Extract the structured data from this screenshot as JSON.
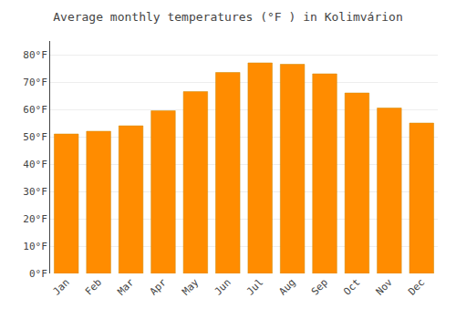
{
  "chart_data": {
    "type": "bar",
    "title": "Average monthly temperatures (°F ) in Kolimvárion",
    "categories": [
      "Jan",
      "Feb",
      "Mar",
      "Apr",
      "May",
      "Jun",
      "Jul",
      "Aug",
      "Sep",
      "Oct",
      "Nov",
      "Dec"
    ],
    "values": [
      51,
      52,
      54,
      59.5,
      66.5,
      73.5,
      77,
      76.5,
      73,
      66,
      60.5,
      55
    ],
    "color": "#FF8C00",
    "ylim": [
      0,
      85
    ],
    "yticks": [
      {
        "value": 0,
        "label": "0°F"
      },
      {
        "value": 10,
        "label": "10°F"
      },
      {
        "value": 20,
        "label": "20°F"
      },
      {
        "value": 30,
        "label": "30°F"
      },
      {
        "value": 40,
        "label": "40°F"
      },
      {
        "value": 50,
        "label": "50°F"
      },
      {
        "value": 60,
        "label": "60°F"
      },
      {
        "value": 70,
        "label": "70°F"
      },
      {
        "value": 80,
        "label": "80°F"
      }
    ],
    "grid": true
  }
}
